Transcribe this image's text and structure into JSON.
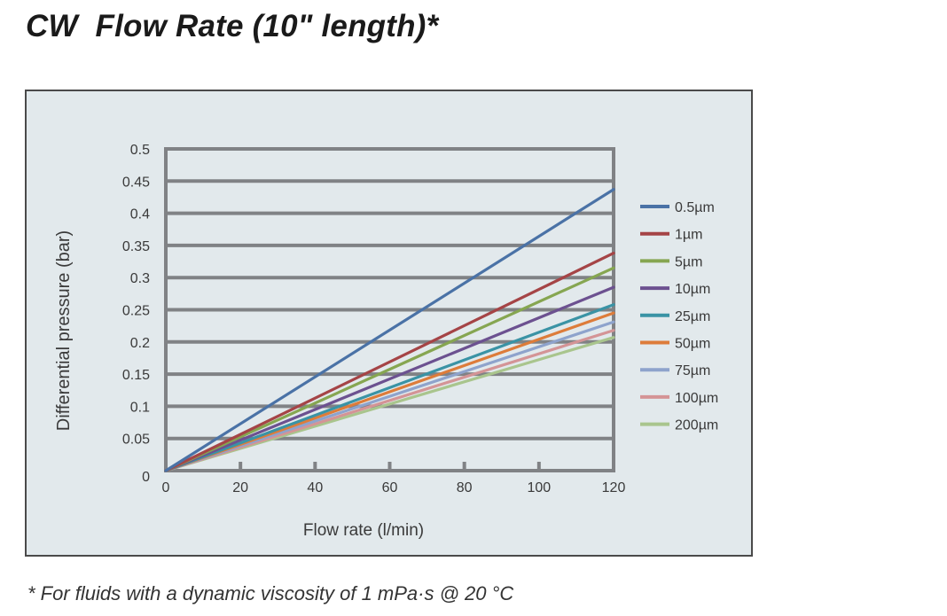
{
  "title": "CW  Flow Rate (10\" length)*",
  "footnote": "* For fluids with a dynamic viscosity of 1 mPa·s @ 20 °C",
  "chart_data": {
    "type": "line",
    "title": "CW  Flow Rate (10\" length)*",
    "xlabel": "Flow rate (l/min)",
    "ylabel": "Differential pressure (bar)",
    "xlim": [
      0,
      120
    ],
    "ylim": [
      0,
      0.5
    ],
    "xticks": [
      0,
      20,
      40,
      60,
      80,
      100,
      120
    ],
    "yticks": [
      0,
      0.05,
      0.1,
      0.15,
      0.2,
      0.25,
      0.3,
      0.35,
      0.4,
      0.45,
      0.5
    ],
    "ytick_labels": [
      "0",
      "0.05",
      "0.1",
      "0.15",
      "0.2",
      "0.25",
      "0.3",
      "0.35",
      "0.4",
      "0.45",
      "0.5"
    ],
    "grid": "horizontal",
    "legend": "right",
    "x": [
      0,
      120
    ],
    "series": [
      {
        "name": "0.5µm",
        "color": "#4a72a6",
        "values": [
          0,
          0.437
        ]
      },
      {
        "name": "1µm",
        "color": "#a54446",
        "values": [
          0,
          0.338
        ]
      },
      {
        "name": "5µm",
        "color": "#86a651",
        "values": [
          0,
          0.315
        ]
      },
      {
        "name": "10µm",
        "color": "#6c5190",
        "values": [
          0,
          0.285
        ]
      },
      {
        "name": "25µm",
        "color": "#3a93a5",
        "values": [
          0,
          0.258
        ]
      },
      {
        "name": "50µm",
        "color": "#dd7c3a",
        "values": [
          0,
          0.245
        ]
      },
      {
        "name": "75µm",
        "color": "#8ea3cc",
        "values": [
          0,
          0.231
        ]
      },
      {
        "name": "100µm",
        "color": "#d49496",
        "values": [
          0,
          0.218
        ]
      },
      {
        "name": "200µm",
        "color": "#a9c58d",
        "values": [
          0,
          0.207
        ]
      }
    ]
  }
}
